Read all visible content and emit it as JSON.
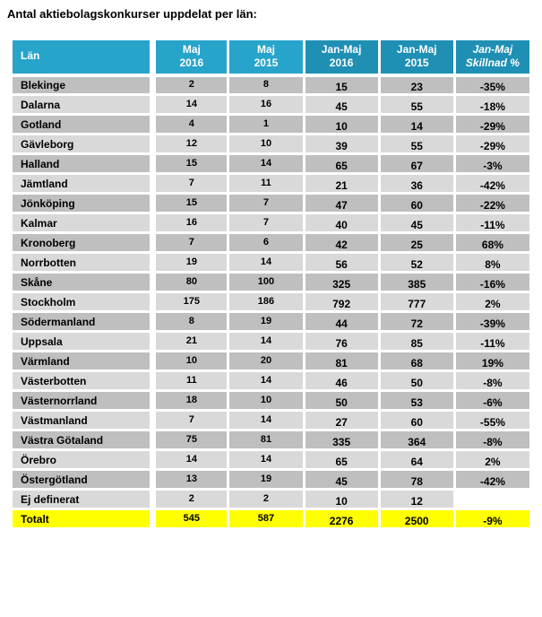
{
  "title": "Antal aktiebolagskonkurser uppdelat per län:",
  "colors": {
    "header_light": "#27A4CA",
    "header_dark": "#1F90B4",
    "row_dark": "#BFBFBF",
    "row_light": "#D9D9D9",
    "total_row_bg": "#FFFF00",
    "header_text": "#FFFFFF",
    "body_text": "#000000"
  },
  "table": {
    "columns": [
      {
        "id": "lan",
        "line1": "Län",
        "line2": "",
        "italic": false,
        "shade": "light"
      },
      {
        "id": "maj2016",
        "line1": "Maj",
        "line2": "2016",
        "italic": false,
        "shade": "light"
      },
      {
        "id": "maj2015",
        "line1": "Maj",
        "line2": "2015",
        "italic": false,
        "shade": "light"
      },
      {
        "id": "janmaj2016",
        "line1": "Jan-Maj",
        "line2": "2016",
        "italic": false,
        "shade": "dark"
      },
      {
        "id": "janmaj2015",
        "line1": "Jan-Maj",
        "line2": "2015",
        "italic": false,
        "shade": "dark"
      },
      {
        "id": "skillnad",
        "line1": "Jan-Maj",
        "line2": "Skillnad %",
        "italic": true,
        "shade": "dark"
      }
    ],
    "rows": [
      {
        "lan": "Blekinge",
        "maj2016": "2",
        "maj2015": "8",
        "janmaj2016": "15",
        "janmaj2015": "23",
        "skillnad": "-35%"
      },
      {
        "lan": "Dalarna",
        "maj2016": "14",
        "maj2015": "16",
        "janmaj2016": "45",
        "janmaj2015": "55",
        "skillnad": "-18%"
      },
      {
        "lan": "Gotland",
        "maj2016": "4",
        "maj2015": "1",
        "janmaj2016": "10",
        "janmaj2015": "14",
        "skillnad": "-29%"
      },
      {
        "lan": "Gävleborg",
        "maj2016": "12",
        "maj2015": "10",
        "janmaj2016": "39",
        "janmaj2015": "55",
        "skillnad": "-29%"
      },
      {
        "lan": "Halland",
        "maj2016": "15",
        "maj2015": "14",
        "janmaj2016": "65",
        "janmaj2015": "67",
        "skillnad": "-3%"
      },
      {
        "lan": "Jämtland",
        "maj2016": "7",
        "maj2015": "11",
        "janmaj2016": "21",
        "janmaj2015": "36",
        "skillnad": "-42%"
      },
      {
        "lan": "Jönköping",
        "maj2016": "15",
        "maj2015": "7",
        "janmaj2016": "47",
        "janmaj2015": "60",
        "skillnad": "-22%"
      },
      {
        "lan": "Kalmar",
        "maj2016": "16",
        "maj2015": "7",
        "janmaj2016": "40",
        "janmaj2015": "45",
        "skillnad": "-11%"
      },
      {
        "lan": "Kronoberg",
        "maj2016": "7",
        "maj2015": "6",
        "janmaj2016": "42",
        "janmaj2015": "25",
        "skillnad": "68%"
      },
      {
        "lan": "Norrbotten",
        "maj2016": "19",
        "maj2015": "14",
        "janmaj2016": "56",
        "janmaj2015": "52",
        "skillnad": "8%"
      },
      {
        "lan": "Skåne",
        "maj2016": "80",
        "maj2015": "100",
        "janmaj2016": "325",
        "janmaj2015": "385",
        "skillnad": "-16%"
      },
      {
        "lan": "Stockholm",
        "maj2016": "175",
        "maj2015": "186",
        "janmaj2016": "792",
        "janmaj2015": "777",
        "skillnad": "2%"
      },
      {
        "lan": "Södermanland",
        "maj2016": "8",
        "maj2015": "19",
        "janmaj2016": "44",
        "janmaj2015": "72",
        "skillnad": "-39%"
      },
      {
        "lan": "Uppsala",
        "maj2016": "21",
        "maj2015": "14",
        "janmaj2016": "76",
        "janmaj2015": "85",
        "skillnad": "-11%"
      },
      {
        "lan": "Värmland",
        "maj2016": "10",
        "maj2015": "20",
        "janmaj2016": "81",
        "janmaj2015": "68",
        "skillnad": "19%"
      },
      {
        "lan": "Västerbotten",
        "maj2016": "11",
        "maj2015": "14",
        "janmaj2016": "46",
        "janmaj2015": "50",
        "skillnad": "-8%"
      },
      {
        "lan": "Västernorrland",
        "maj2016": "18",
        "maj2015": "10",
        "janmaj2016": "50",
        "janmaj2015": "53",
        "skillnad": "-6%"
      },
      {
        "lan": "Västmanland",
        "maj2016": "7",
        "maj2015": "14",
        "janmaj2016": "27",
        "janmaj2015": "60",
        "skillnad": "-55%"
      },
      {
        "lan": "Västra Götaland",
        "maj2016": "75",
        "maj2015": "81",
        "janmaj2016": "335",
        "janmaj2015": "364",
        "skillnad": "-8%"
      },
      {
        "lan": "Örebro",
        "maj2016": "14",
        "maj2015": "14",
        "janmaj2016": "65",
        "janmaj2015": "64",
        "skillnad": "2%"
      },
      {
        "lan": "Östergötland",
        "maj2016": "13",
        "maj2015": "19",
        "janmaj2016": "45",
        "janmaj2015": "78",
        "skillnad": "-42%"
      },
      {
        "lan": "Ej definerat",
        "maj2016": "2",
        "maj2015": "2",
        "janmaj2016": "10",
        "janmaj2015": "12",
        "skillnad": ""
      }
    ],
    "total": {
      "lan": "Totalt",
      "maj2016": "545",
      "maj2015": "587",
      "janmaj2016": "2276",
      "janmaj2015": "2500",
      "skillnad": "-9%"
    }
  }
}
